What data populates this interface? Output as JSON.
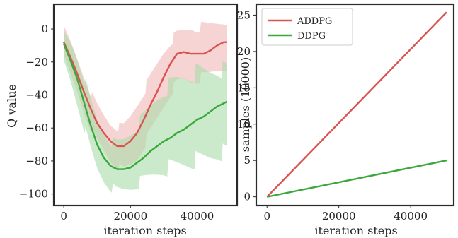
{
  "chart_data": [
    {
      "type": "line",
      "title": "",
      "xlabel": "iteration steps",
      "ylabel": "Q value",
      "xlim": [
        -3000,
        52000
      ],
      "ylim": [
        -107,
        15
      ],
      "xticks": [
        0,
        20000,
        40000
      ],
      "xtick_labels": [
        "0",
        "20000",
        "40000"
      ],
      "yticks": [
        0,
        -20,
        -40,
        -60,
        -80,
        -100
      ],
      "ytick_labels": [
        "0",
        "−20",
        "−40",
        "−60",
        "−80",
        "−100"
      ],
      "grid": false,
      "legend": false,
      "x": [
        0,
        2000,
        4000,
        6000,
        8000,
        10000,
        12000,
        14000,
        16000,
        18000,
        20000,
        22000,
        24000,
        26000,
        28000,
        30000,
        32000,
        34000,
        36000,
        38000,
        40000,
        42000,
        44000,
        46000,
        48000,
        49000
      ],
      "series": [
        {
          "name": "ADDPG",
          "color": "#d9534f",
          "band_color": "#f2b8b8",
          "values": [
            -8,
            -17,
            -27,
            -38,
            -48,
            -57,
            -63,
            -68,
            -71,
            -71,
            -68,
            -63,
            -55,
            -46,
            -38,
            -29,
            -21,
            -15,
            -14,
            -15,
            -15,
            -15,
            -13,
            -10,
            -8,
            -8
          ],
          "band_low": [
            -20,
            -30,
            -40,
            -52,
            -62,
            -70,
            -76,
            -82,
            -86,
            -88,
            -86,
            -82,
            -74,
            -66,
            -58,
            -50,
            -42,
            -36,
            -34,
            -35,
            -34,
            -32,
            -30,
            -28,
            -26,
            -26
          ],
          "band_high": [
            2,
            -6,
            -16,
            -26,
            -36,
            -44,
            -50,
            -55,
            -57,
            -56,
            -50,
            -42,
            -34,
            -26,
            -18,
            -10,
            -4,
            0,
            2,
            4,
            4,
            5,
            6,
            7,
            8,
            8
          ]
        },
        {
          "name": "DDPG",
          "color": "#3aa83a",
          "band_color": "#a8dca8",
          "values": [
            -9,
            -19,
            -30,
            -44,
            -58,
            -70,
            -78,
            -83,
            -85,
            -85,
            -84,
            -81,
            -78,
            -74,
            -71,
            -68,
            -66,
            -63,
            -61,
            -58,
            -55,
            -53,
            -50,
            -47,
            -45,
            -44
          ],
          "band_low": [
            -22,
            -34,
            -48,
            -62,
            -76,
            -88,
            -95,
            -99,
            -101,
            -101,
            -100,
            -98,
            -96,
            -94,
            -92,
            -90,
            -89,
            -88,
            -87,
            -86,
            -85,
            -84,
            -83,
            -81,
            -80,
            -80
          ],
          "band_high": [
            0,
            -6,
            -14,
            -26,
            -40,
            -52,
            -60,
            -65,
            -66,
            -64,
            -60,
            -55,
            -49,
            -43,
            -37,
            -32,
            -28,
            -25,
            -23,
            -22,
            -20,
            -20,
            -20,
            -19,
            -19,
            -19
          ]
        }
      ]
    },
    {
      "type": "line",
      "title": "",
      "xlabel": "iteration steps",
      "ylabel": "samples (10000)",
      "xlim": [
        -3000,
        52000
      ],
      "ylim": [
        -1.2,
        26.5
      ],
      "xticks": [
        0,
        20000,
        40000
      ],
      "xtick_labels": [
        "0",
        "20000",
        "40000"
      ],
      "yticks": [
        0,
        5,
        10,
        15,
        20,
        25
      ],
      "ytick_labels": [
        "0",
        "5",
        "10",
        "15",
        "20",
        "25"
      ],
      "grid": false,
      "legend": "top-left",
      "x": [
        0,
        50000
      ],
      "series": [
        {
          "name": "ADDPG",
          "color": "#d9534f",
          "values": [
            0,
            25.4
          ]
        },
        {
          "name": "DDPG",
          "color": "#3aa83a",
          "values": [
            0,
            5.0
          ]
        }
      ]
    }
  ]
}
